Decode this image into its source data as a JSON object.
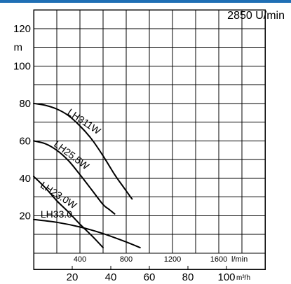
{
  "accent_color": "#1f6fb5",
  "speed_label": "2850 U/min",
  "chart_data": {
    "type": "line",
    "title": "",
    "ylabel": "m",
    "ylim": [
      0,
      130
    ],
    "yticks": [
      20,
      40,
      60,
      80,
      100,
      120
    ],
    "x_primary": {
      "unit": "l/min",
      "lim": [
        0,
        2000
      ],
      "ticks": [
        400,
        800,
        1200,
        1600
      ]
    },
    "x_secondary": {
      "unit": "m³/h",
      "lim": [
        0,
        120
      ],
      "ticks": [
        20,
        40,
        60,
        80,
        100
      ]
    },
    "grid": true,
    "series": [
      {
        "name": "LH311W",
        "x": [
          0,
          100,
          200,
          300,
          400,
          500,
          600,
          700,
          780,
          850
        ],
        "y": [
          80,
          79,
          77,
          73.5,
          68,
          61,
          52,
          42,
          35,
          29
        ]
      },
      {
        "name": "LH25.5W",
        "x": [
          0,
          100,
          200,
          300,
          400,
          500,
          600,
          650,
          700
        ],
        "y": [
          60,
          58.5,
          55,
          49.5,
          42,
          34,
          26,
          23.5,
          21
        ]
      },
      {
        "name": "LH23.0W",
        "x": [
          0,
          100,
          200,
          300,
          400,
          500,
          600
        ],
        "y": [
          41,
          35,
          28,
          22,
          15.5,
          9.5,
          3
        ]
      },
      {
        "name": "LH33.0",
        "x": [
          0,
          200,
          400,
          600,
          800,
          920
        ],
        "y": [
          18,
          16.5,
          14,
          10.5,
          6,
          3
        ]
      }
    ]
  }
}
